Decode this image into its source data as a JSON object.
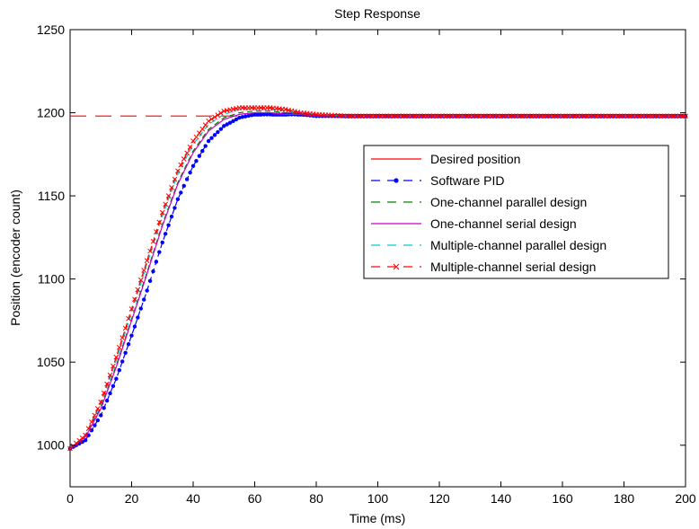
{
  "chart_data": {
    "type": "line",
    "title": "Step Response",
    "xlabel": "Time (ms)",
    "ylabel": "Position (encoder count)",
    "xlim": [
      0,
      200
    ],
    "ylim": [
      975,
      1250
    ],
    "xticks": [
      0,
      20,
      40,
      60,
      80,
      100,
      120,
      140,
      160,
      180,
      200
    ],
    "yticks": [
      1000,
      1050,
      1100,
      1150,
      1200,
      1250
    ],
    "grid": false,
    "legend_position": "right",
    "series": [
      {
        "name": "Desired position",
        "color": "#ff0000",
        "style": "solid",
        "marker": "none",
        "x": [
          0,
          200
        ],
        "y": [
          1198,
          1198
        ]
      },
      {
        "name": "Software PID",
        "color": "#0000ff",
        "style": "dashed",
        "marker": "dot",
        "x": [
          0,
          5,
          10,
          15,
          20,
          25,
          30,
          35,
          40,
          45,
          50,
          55,
          60,
          65,
          70,
          75,
          80,
          90,
          100,
          120,
          140,
          160,
          180,
          200
        ],
        "y": [
          998,
          1003,
          1018,
          1040,
          1066,
          1093,
          1122,
          1148,
          1168,
          1183,
          1192,
          1197,
          1199,
          1199,
          1199,
          1199,
          1198,
          1198,
          1198,
          1198,
          1198,
          1198,
          1198,
          1198
        ]
      },
      {
        "name": "One-channel parallel design",
        "color": "#008000",
        "style": "dashed",
        "marker": "none",
        "x": [
          0,
          5,
          10,
          15,
          20,
          25,
          30,
          35,
          40,
          45,
          50,
          55,
          60,
          65,
          70,
          75,
          80,
          90,
          100,
          120,
          140,
          160,
          180,
          200
        ],
        "y": [
          998,
          1005,
          1023,
          1048,
          1076,
          1104,
          1133,
          1158,
          1177,
          1190,
          1197,
          1200,
          1201,
          1201,
          1200,
          1199,
          1198,
          1198,
          1198,
          1198,
          1198,
          1198,
          1198,
          1198
        ]
      },
      {
        "name": "One-channel serial design",
        "color": "#cc00cc",
        "style": "solid",
        "marker": "none",
        "x": [
          0,
          5,
          10,
          15,
          20,
          25,
          30,
          35,
          40,
          45,
          50,
          55,
          60,
          65,
          70,
          75,
          80,
          90,
          100,
          120,
          140,
          160,
          180,
          200
        ],
        "y": [
          998,
          1005,
          1022,
          1047,
          1075,
          1103,
          1132,
          1157,
          1176,
          1189,
          1196,
          1199,
          1200,
          1200,
          1199,
          1199,
          1198,
          1198,
          1198,
          1198,
          1198,
          1198,
          1198,
          1198
        ]
      },
      {
        "name": "Multiple-channel parallel design",
        "color": "#00cccc",
        "style": "dashed",
        "marker": "none",
        "x": [
          0,
          5,
          10,
          15,
          20,
          25,
          30,
          35,
          40,
          45,
          50,
          55,
          60,
          65,
          70,
          75,
          80,
          90,
          100,
          120,
          140,
          160,
          180,
          200
        ],
        "y": [
          998,
          1006,
          1025,
          1051,
          1080,
          1109,
          1138,
          1163,
          1181,
          1193,
          1199,
          1202,
          1202,
          1202,
          1201,
          1200,
          1199,
          1198,
          1198,
          1198,
          1198,
          1198,
          1198,
          1198
        ]
      },
      {
        "name": "Multiple-channel serial design",
        "color": "#ff0000",
        "style": "dashed",
        "marker": "x",
        "x": [
          0,
          5,
          10,
          15,
          20,
          25,
          30,
          35,
          40,
          45,
          50,
          55,
          60,
          65,
          70,
          75,
          80,
          90,
          100,
          120,
          140,
          160,
          180,
          200
        ],
        "y": [
          998,
          1006,
          1026,
          1053,
          1082,
          1111,
          1140,
          1165,
          1183,
          1195,
          1201,
          1203,
          1203,
          1203,
          1202,
          1200,
          1199,
          1198,
          1198,
          1198,
          1198,
          1198,
          1198,
          1198
        ]
      }
    ]
  }
}
